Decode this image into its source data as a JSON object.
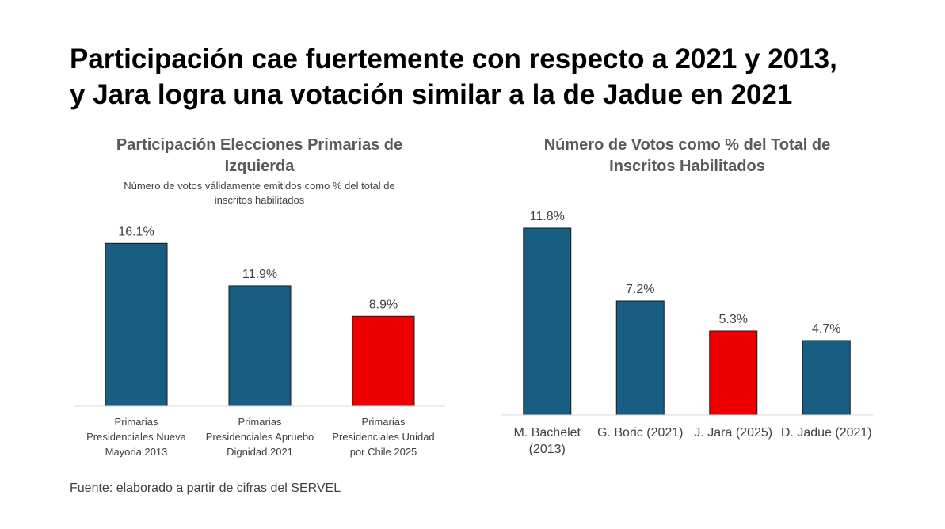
{
  "title": {
    "line1": "Participación cae fuertemente con respecto a 2021 y 2013,",
    "line2": "y Jara logra una votación similar a la de Jadue en 2021"
  },
  "source": "Fuente: elaborado a partir de cifras del SERVEL",
  "colors": {
    "blue": "#175E82",
    "red": "#EE0000",
    "axis": "#D9D9D9",
    "label": "#404040"
  },
  "chart_data": [
    {
      "type": "bar",
      "title_line1": "Participación Elecciones Primarias de",
      "title_line2": "Izquierda",
      "subtitle_line1": "Número de votos válidamente emitidos como % del total de",
      "subtitle_line2": "inscritos habilitados",
      "categories": [
        [
          "Primarias",
          "Presidenciales Nueva",
          "Mayoria 2013"
        ],
        [
          "Primarias",
          "Presidenciales Apruebo",
          "Dignidad 2021"
        ],
        [
          "Primarias",
          "Presidenciales Unidad",
          "por Chile 2025"
        ]
      ],
      "values": [
        16.1,
        11.9,
        8.9
      ],
      "data_labels": [
        "16.1%",
        "11.9%",
        "8.9%"
      ],
      "bar_colors": [
        "#175E82",
        "#175E82",
        "#EE0000"
      ],
      "ylim": [
        0,
        18
      ]
    },
    {
      "type": "bar",
      "title_line1": "Número de Votos como % del Total de",
      "title_line2": "Inscritos Habilitados",
      "categories": [
        [
          "M. Bachelet",
          "(2013)"
        ],
        [
          "G. Boric (2021)"
        ],
        [
          "J. Jara (2025)"
        ],
        [
          "D. Jadue (2021)"
        ]
      ],
      "values": [
        11.8,
        7.2,
        5.3,
        4.7
      ],
      "data_labels": [
        "11.8%",
        "7.2%",
        "5.3%",
        "4.7%"
      ],
      "bar_colors": [
        "#175E82",
        "#175E82",
        "#EE0000",
        "#175E82"
      ],
      "ylim": [
        0,
        13
      ]
    }
  ]
}
